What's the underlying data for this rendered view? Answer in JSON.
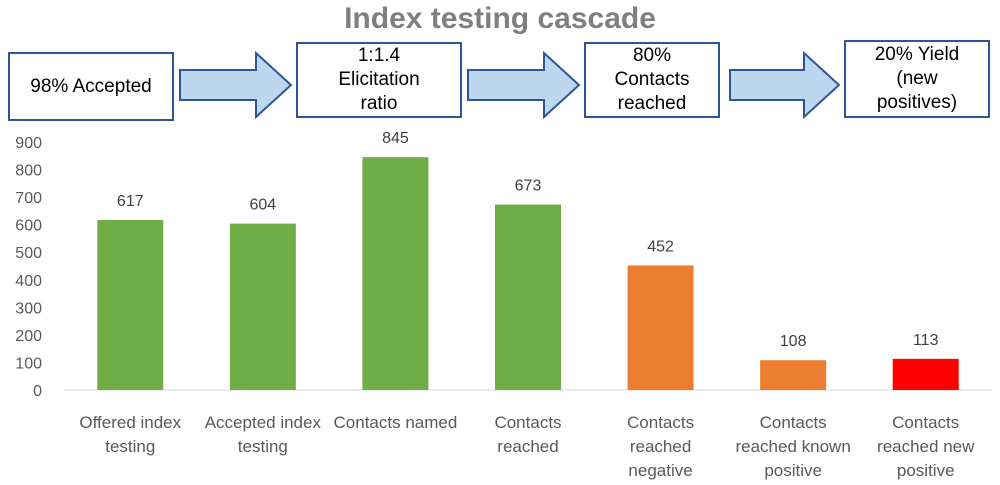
{
  "title": "Index testing cascade",
  "flow": {
    "step1": "98% Accepted",
    "step2": [
      "1:1.4",
      "Elicitation",
      "ratio"
    ],
    "step3": [
      "80%",
      "Contacts",
      "reached"
    ],
    "step4": [
      "20% Yield",
      "(new",
      "positives)"
    ]
  },
  "colors": {
    "green": "#70ad47",
    "orange": "#ed7d31",
    "red": "#ff0000",
    "arrow_fill": "#bdd7ee",
    "arrow_stroke": "#2f5597"
  },
  "chart_data": {
    "type": "bar",
    "title": "Index testing cascade",
    "xlabel": "",
    "ylabel": "",
    "ylim": [
      0,
      900
    ],
    "yticks": [
      0,
      100,
      200,
      300,
      400,
      500,
      600,
      700,
      800,
      900
    ],
    "grid": false,
    "categories": [
      [
        "Offered index",
        "testing"
      ],
      [
        "Accepted index",
        "testing"
      ],
      [
        "Contacts named"
      ],
      [
        "Contacts",
        "reached"
      ],
      [
        "Contacts",
        "reached",
        "negative"
      ],
      [
        "Contacts",
        "reached known",
        "positive"
      ],
      [
        "Contacts",
        "reached new",
        "positive"
      ]
    ],
    "values": [
      617,
      604,
      845,
      673,
      452,
      108,
      113
    ],
    "bar_colors": [
      "#70ad47",
      "#70ad47",
      "#70ad47",
      "#70ad47",
      "#ed7d31",
      "#ed7d31",
      "#ff0000"
    ]
  }
}
